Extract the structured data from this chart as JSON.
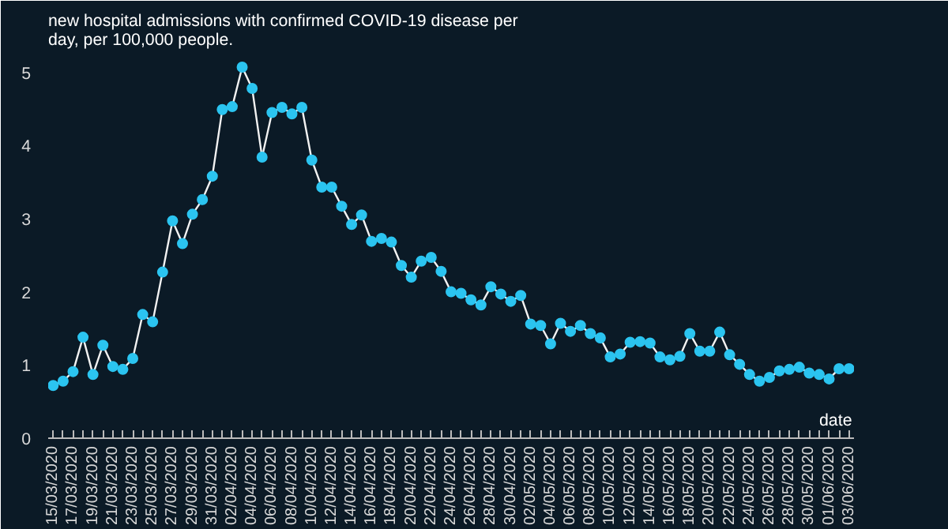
{
  "chart_data": {
    "type": "line",
    "title": "new hospital admissions with confirmed COVID-19 disease per day, per 100,000 people.",
    "xlabel": "date",
    "x": [
      "2020-03-15",
      "2020-03-16",
      "2020-03-17",
      "2020-03-18",
      "2020-03-19",
      "2020-03-20",
      "2020-03-21",
      "2020-03-22",
      "2020-03-23",
      "2020-03-24",
      "2020-03-25",
      "2020-03-26",
      "2020-03-27",
      "2020-03-28",
      "2020-03-29",
      "2020-03-30",
      "2020-03-31",
      "2020-04-01",
      "2020-04-02",
      "2020-04-03",
      "2020-04-04",
      "2020-04-05",
      "2020-04-06",
      "2020-04-07",
      "2020-04-08",
      "2020-04-09",
      "2020-04-10",
      "2020-04-11",
      "2020-04-12",
      "2020-04-13",
      "2020-04-14",
      "2020-04-15",
      "2020-04-16",
      "2020-04-17",
      "2020-04-18",
      "2020-04-19",
      "2020-04-20",
      "2020-04-21",
      "2020-04-22",
      "2020-04-23",
      "2020-04-24",
      "2020-04-25",
      "2020-04-26",
      "2020-04-27",
      "2020-04-28",
      "2020-04-29",
      "2020-04-30",
      "2020-05-01",
      "2020-05-02",
      "2020-05-03",
      "2020-05-04",
      "2020-05-05",
      "2020-05-06",
      "2020-05-07",
      "2020-05-08",
      "2020-05-09",
      "2020-05-10",
      "2020-05-11",
      "2020-05-12",
      "2020-05-13",
      "2020-05-14",
      "2020-05-15",
      "2020-05-16",
      "2020-05-17",
      "2020-05-18",
      "2020-05-19",
      "2020-05-20",
      "2020-05-21",
      "2020-05-22",
      "2020-05-23",
      "2020-05-24",
      "2020-05-25",
      "2020-05-26",
      "2020-05-27",
      "2020-05-28",
      "2020-05-29",
      "2020-05-30",
      "2020-05-31",
      "2020-06-01",
      "2020-06-02",
      "2020-06-03"
    ],
    "series": [
      {
        "color": "#2bc4f0",
        "values": [
          0.72,
          0.78,
          0.91,
          1.38,
          0.87,
          1.27,
          0.98,
          0.94,
          1.09,
          1.69,
          1.59,
          2.27,
          2.97,
          2.66,
          3.06,
          3.26,
          3.58,
          4.49,
          4.53,
          5.07,
          4.78,
          3.84,
          4.45,
          4.52,
          4.43,
          4.52,
          3.8,
          3.43,
          3.43,
          3.17,
          2.92,
          3.05,
          2.69,
          2.73,
          2.68,
          2.36,
          2.2,
          2.42,
          2.47,
          2.28,
          2.0,
          1.98,
          1.89,
          1.82,
          2.07,
          1.97,
          1.87,
          1.95,
          1.56,
          1.54,
          1.29,
          1.57,
          1.46,
          1.54,
          1.43,
          1.37,
          1.11,
          1.15,
          1.31,
          1.32,
          1.3,
          1.11,
          1.07,
          1.12,
          1.43,
          1.19,
          1.19,
          1.45,
          1.14,
          1.01,
          0.87,
          0.78,
          0.83,
          0.92,
          0.94,
          0.97,
          0.89,
          0.87,
          0.81,
          0.95,
          0.95
        ]
      }
    ],
    "xlim": [
      "2020-03-14T12:00",
      "2020-06-03T12:00"
    ],
    "ylim": [
      0,
      5.2
    ],
    "yticks": [
      0,
      1,
      2,
      3,
      4,
      5
    ],
    "xticks": [
      {
        "value": "2020-03-15",
        "label": "15/03/2020"
      },
      {
        "value": "2020-03-16",
        "label": null
      },
      {
        "value": "2020-03-17",
        "label": "17/03/2020"
      },
      {
        "value": "2020-03-18",
        "label": null
      },
      {
        "value": "2020-03-19",
        "label": "19/03/2020"
      },
      {
        "value": "2020-03-20",
        "label": null
      },
      {
        "value": "2020-03-21",
        "label": "21/03/2020"
      },
      {
        "value": "2020-03-22",
        "label": null
      },
      {
        "value": "2020-03-23",
        "label": "23/03/2020"
      },
      {
        "value": "2020-03-24",
        "label": null
      },
      {
        "value": "2020-03-25",
        "label": "25/03/2020"
      },
      {
        "value": "2020-03-26",
        "label": null
      },
      {
        "value": "2020-03-27",
        "label": "27/03/2020"
      },
      {
        "value": "2020-03-28",
        "label": null
      },
      {
        "value": "2020-03-29",
        "label": "29/03/2020"
      },
      {
        "value": "2020-03-30",
        "label": null
      },
      {
        "value": "2020-03-31",
        "label": "31/03/2020"
      },
      {
        "value": "2020-04-01",
        "label": null
      },
      {
        "value": "2020-04-02",
        "label": "02/04/2020"
      },
      {
        "value": "2020-04-03",
        "label": null
      },
      {
        "value": "2020-04-04",
        "label": "04/04/2020"
      },
      {
        "value": "2020-04-05",
        "label": null
      },
      {
        "value": "2020-04-06",
        "label": "06/04/2020"
      },
      {
        "value": "2020-04-07",
        "label": null
      },
      {
        "value": "2020-04-08",
        "label": "08/04/2020"
      },
      {
        "value": "2020-04-09",
        "label": null
      },
      {
        "value": "2020-04-10",
        "label": "10/04/2020"
      },
      {
        "value": "2020-04-11",
        "label": null
      },
      {
        "value": "2020-04-12",
        "label": "12/04/2020"
      },
      {
        "value": "2020-04-13",
        "label": null
      },
      {
        "value": "2020-04-14",
        "label": "14/04/2020"
      },
      {
        "value": "2020-04-15",
        "label": null
      },
      {
        "value": "2020-04-16",
        "label": "16/04/2020"
      },
      {
        "value": "2020-04-17",
        "label": null
      },
      {
        "value": "2020-04-18",
        "label": "18/04/2020"
      },
      {
        "value": "2020-04-19",
        "label": null
      },
      {
        "value": "2020-04-20",
        "label": "20/04/2020"
      },
      {
        "value": "2020-04-21",
        "label": null
      },
      {
        "value": "2020-04-22",
        "label": "22/04/2020"
      },
      {
        "value": "2020-04-23",
        "label": null
      },
      {
        "value": "2020-04-24",
        "label": "24/04/2020"
      },
      {
        "value": "2020-04-25",
        "label": null
      },
      {
        "value": "2020-04-26",
        "label": "26/04/2020"
      },
      {
        "value": "2020-04-27",
        "label": null
      },
      {
        "value": "2020-04-28",
        "label": "28/04/2020"
      },
      {
        "value": "2020-04-29",
        "label": null
      },
      {
        "value": "2020-04-30",
        "label": "30/04/2020"
      },
      {
        "value": "2020-05-01",
        "label": null
      },
      {
        "value": "2020-05-02",
        "label": "02/05/2020"
      },
      {
        "value": "2020-05-03",
        "label": null
      },
      {
        "value": "2020-05-04",
        "label": "04/05/2020"
      },
      {
        "value": "2020-05-05",
        "label": null
      },
      {
        "value": "2020-05-06",
        "label": "06/05/2020"
      },
      {
        "value": "2020-05-07",
        "label": null
      },
      {
        "value": "2020-05-08",
        "label": "08/05/2020"
      },
      {
        "value": "2020-05-09",
        "label": null
      },
      {
        "value": "2020-05-10",
        "label": "10/05/2020"
      },
      {
        "value": "2020-05-11",
        "label": null
      },
      {
        "value": "2020-05-12",
        "label": "12/05/2020"
      },
      {
        "value": "2020-05-13",
        "label": null
      },
      {
        "value": "2020-05-14",
        "label": "14/05/2020"
      },
      {
        "value": "2020-05-15",
        "label": null
      },
      {
        "value": "2020-05-16",
        "label": "16/05/2020"
      },
      {
        "value": "2020-05-17",
        "label": null
      },
      {
        "value": "2020-05-18",
        "label": "18/05/2020"
      },
      {
        "value": "2020-05-19",
        "label": null
      },
      {
        "value": "2020-05-20",
        "label": "20/05/2020"
      },
      {
        "value": "2020-05-21",
        "label": null
      },
      {
        "value": "2020-05-22",
        "label": "22/05/2020"
      },
      {
        "value": "2020-05-23",
        "label": null
      },
      {
        "value": "2020-05-24",
        "label": "24/05/2020"
      },
      {
        "value": "2020-05-25",
        "label": null
      },
      {
        "value": "2020-05-26",
        "label": "26/05/2020"
      },
      {
        "value": "2020-05-27",
        "label": null
      },
      {
        "value": "2020-05-28",
        "label": "28/05/2020"
      },
      {
        "value": "2020-05-29",
        "label": null
      },
      {
        "value": "2020-05-30",
        "label": "30/05/2020"
      },
      {
        "value": "2020-05-31",
        "label": null
      },
      {
        "value": "2020-06-01",
        "label": "01/06/2020"
      },
      {
        "value": "2020-06-02",
        "label": null
      },
      {
        "value": "2020-06-03",
        "label": "03/06/2020"
      }
    ],
    "grid": false,
    "marker": "circle",
    "line_style": "solid"
  }
}
